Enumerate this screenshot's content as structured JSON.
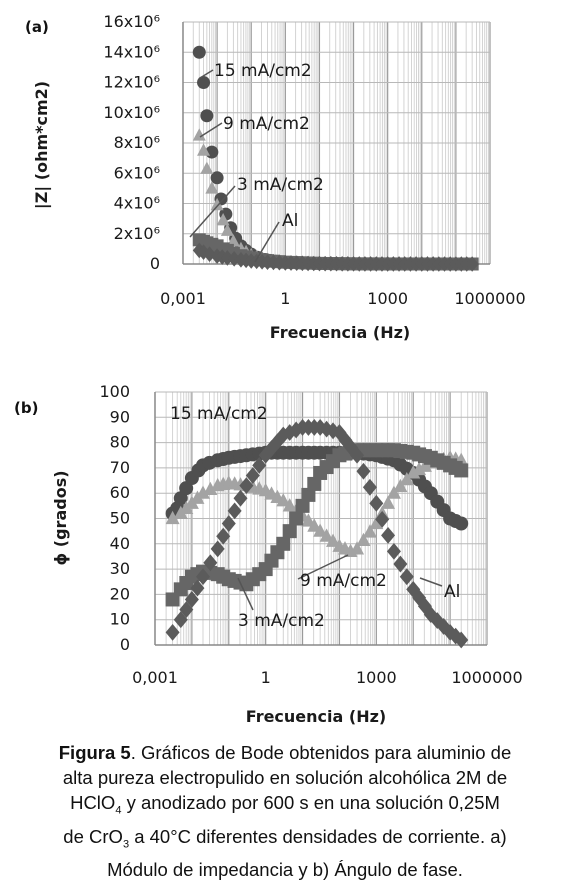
{
  "figure": {
    "caption_label": "Figura 5",
    "caption_l1": ". Gráficos de Bode obtenidos para aluminio de",
    "caption_l2": "alta pureza electropulido en solución alcohólica 2M de",
    "caption_l3a": "HClO",
    "caption_l3sub": "4",
    "caption_l3b": " y anodizado por 600 s en una solución 0,25M",
    "caption_l4a": "de CrO",
    "caption_l4sub": "3",
    "caption_l4b": " a 40°C diferentes densidades de corriente. a)",
    "caption_l5": "Módulo de impedancia y b) Ángulo de fase."
  },
  "chart_data": [
    {
      "panel_label": "(a)",
      "type": "scatter",
      "xscale": "log",
      "xlabel": "Frecuencia (Hz)",
      "ylabel": "|Z| (ohm*cm2)",
      "xlim": [
        0.001,
        1000000
      ],
      "ylim": [
        0,
        16000000
      ],
      "x_ticks": [
        "0,001",
        "1",
        "1000",
        "1000000"
      ],
      "y_ticks": [
        "0",
        "2x10⁶",
        "4x10⁶",
        "6x10⁶",
        "8x10⁶",
        "10x10⁶",
        "12x10⁶",
        "14x10⁶",
        "16x10⁶"
      ],
      "grid": true,
      "annotations": [
        "15 mA/cm2",
        "9 mA/cm2",
        "3 mA/cm2",
        "Al"
      ],
      "series": [
        {
          "name": "15 mA/cm2",
          "marker": "circle",
          "color": "#4f4f4f",
          "x": [
            0.003,
            0.004,
            0.005,
            0.007,
            0.01,
            0.013,
            0.018,
            0.025,
            0.035,
            0.05,
            0.07,
            0.1,
            0.15,
            0.25,
            0.5,
            1,
            3,
            10,
            100,
            1000,
            10000,
            100000,
            300000
          ],
          "y": [
            14000000,
            12000000,
            9800000,
            7400000,
            5700000,
            4300000,
            3300000,
            2400000,
            1700000,
            1200000,
            900000,
            650000,
            450000,
            300000,
            180000,
            110000,
            60000,
            30000,
            10000,
            3000,
            1000,
            500,
            300
          ]
        },
        {
          "name": "9 mA/cm2",
          "marker": "triangle",
          "color": "#a3a3a3",
          "x": [
            0.003,
            0.004,
            0.005,
            0.007,
            0.01,
            0.015,
            0.02,
            0.03,
            0.05,
            0.1,
            0.3,
            1,
            10,
            100,
            1000,
            100000,
            300000
          ],
          "y": [
            8500000,
            7500000,
            6300000,
            5000000,
            3900000,
            2900000,
            2200000,
            1500000,
            1000000,
            600000,
            250000,
            120000,
            40000,
            10000,
            3000,
            500,
            300
          ]
        },
        {
          "name": "3 mA/cm2",
          "marker": "square",
          "color": "#666666",
          "x": [
            0.003,
            0.004,
            0.005,
            0.007,
            0.01,
            0.015,
            0.02,
            0.03,
            0.05,
            0.1,
            0.3,
            1,
            10,
            100,
            1000,
            100000,
            300000
          ],
          "y": [
            1600000,
            1500000,
            1400000,
            1300000,
            1200000,
            1000000,
            900000,
            700000,
            550000,
            400000,
            220000,
            120000,
            40000,
            10000,
            3000,
            500,
            300
          ]
        },
        {
          "name": "Al",
          "marker": "diamond",
          "color": "#5b5b5b",
          "x": [
            0.003,
            0.004,
            0.006,
            0.01,
            0.02,
            0.05,
            0.1,
            0.3,
            1,
            10,
            100,
            1000,
            100000,
            300000
          ],
          "y": [
            900000,
            780000,
            650000,
            520000,
            400000,
            280000,
            200000,
            120000,
            70000,
            25000,
            8000,
            2000,
            400,
            300
          ]
        }
      ]
    },
    {
      "panel_label": "(b)",
      "type": "scatter",
      "xscale": "log",
      "xlabel": "Frecuencia (Hz)",
      "ylabel": "ϕ (grados)",
      "xlim": [
        0.001,
        1000000
      ],
      "ylim": [
        0,
        100
      ],
      "x_ticks": [
        "0,001",
        "1",
        "1000",
        "1000000"
      ],
      "y_ticks": [
        "0",
        "10",
        "20",
        "30",
        "40",
        "50",
        "60",
        "70",
        "80",
        "90",
        "100"
      ],
      "grid": true,
      "annotations": [
        "15 mA/cm2",
        "9 mA/cm2",
        "3 mA/cm2",
        "Al"
      ],
      "series": [
        {
          "name": "15 mA/cm2",
          "marker": "circle",
          "color": "#4f4f4f",
          "x": [
            0.003,
            0.004,
            0.005,
            0.007,
            0.01,
            0.015,
            0.02,
            0.03,
            0.05,
            0.1,
            0.3,
            1,
            3,
            10,
            30,
            100,
            300,
            1000,
            3000,
            10000,
            30000,
            100000,
            200000
          ],
          "y": [
            52,
            54,
            58,
            62,
            66,
            69,
            71,
            72,
            73,
            74,
            75,
            76,
            76,
            76,
            76,
            76,
            76,
            75,
            73,
            68,
            60,
            50,
            48
          ]
        },
        {
          "name": "9 mA/cm2",
          "marker": "triangle",
          "color": "#a3a3a3",
          "x": [
            0.003,
            0.005,
            0.01,
            0.02,
            0.05,
            0.1,
            0.3,
            1,
            3,
            10,
            30,
            100,
            200,
            300,
            1000,
            3000,
            10000,
            30000,
            100000,
            200000
          ],
          "y": [
            50,
            52,
            56,
            60,
            63,
            64,
            63,
            61,
            57,
            51,
            45,
            39,
            37,
            38,
            48,
            60,
            68,
            72,
            74,
            73
          ]
        },
        {
          "name": "3 mA/cm2",
          "marker": "square",
          "color": "#666666",
          "x": [
            0.003,
            0.005,
            0.01,
            0.02,
            0.05,
            0.1,
            0.3,
            1,
            3,
            10,
            30,
            100,
            300,
            1000,
            3000,
            10000,
            30000,
            100000,
            200000
          ],
          "y": [
            18,
            22,
            27,
            29,
            28,
            26,
            24,
            30,
            40,
            55,
            68,
            75,
            77,
            77,
            77,
            76,
            74,
            71,
            69
          ]
        },
        {
          "name": "Al",
          "marker": "diamond",
          "color": "#5b5b5b",
          "x": [
            0.003,
            0.005,
            0.01,
            0.02,
            0.05,
            0.1,
            0.3,
            1,
            3,
            10,
            30,
            100,
            300,
            1000,
            3000,
            10000,
            30000,
            100000,
            200000
          ],
          "y": [
            5,
            10,
            18,
            27,
            38,
            48,
            63,
            75,
            83,
            86,
            86,
            84,
            75,
            56,
            37,
            22,
            12,
            5,
            2
          ]
        }
      ]
    }
  ]
}
